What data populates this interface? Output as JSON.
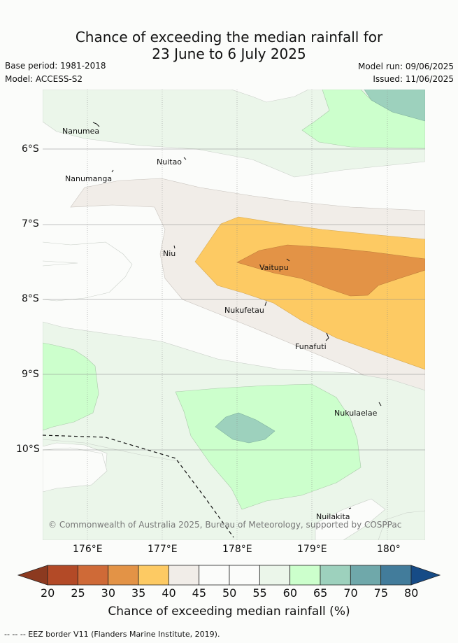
{
  "title": {
    "line1": "Chance of exceeding the median rainfall for",
    "line2": "23 June to 6 July 2025"
  },
  "meta": {
    "base_period": "Base period: 1981-2018",
    "model": "Model: ACCESS-S2",
    "model_run": "Model run: 09/06/2025",
    "issued": "Issued: 11/06/2025"
  },
  "map": {
    "lat_labels": [
      "6°S",
      "7°S",
      "8°S",
      "9°S",
      "10°S"
    ],
    "lon_labels": [
      "176°E",
      "177°E",
      "178°E",
      "179°E",
      "180°"
    ],
    "islands": [
      "Nanumea",
      "Nuitao",
      "Nanumanga",
      "Niu",
      "Vaitupu",
      "Nukufetau",
      "Funafuti",
      "Nukulaelae",
      "Nuilakita"
    ],
    "copyright": "© Commonwealth of Australia 2025, Bureau of Meteorology, supported by COSPPac"
  },
  "colorbar": {
    "ticks": [
      "20",
      "25",
      "30",
      "35",
      "40",
      "45",
      "50",
      "55",
      "60",
      "65",
      "70",
      "75",
      "80"
    ],
    "colors": [
      "#b34a27",
      "#cf6a37",
      "#e39346",
      "#fdca63",
      "#f1ede8",
      "#fbfcfa",
      "#fbfcfa",
      "#ebf6ea",
      "#ccffcc",
      "#9dd1bd",
      "#6fa8aa",
      "#427c9b"
    ],
    "low_color": "#8c3a20",
    "high_color": "#164b86",
    "label": "Chance of exceeding median rainfall (%)"
  },
  "legend": {
    "eez": "-- -- -- EEZ border V11 (Flanders Marine Institute, 2019)."
  }
}
